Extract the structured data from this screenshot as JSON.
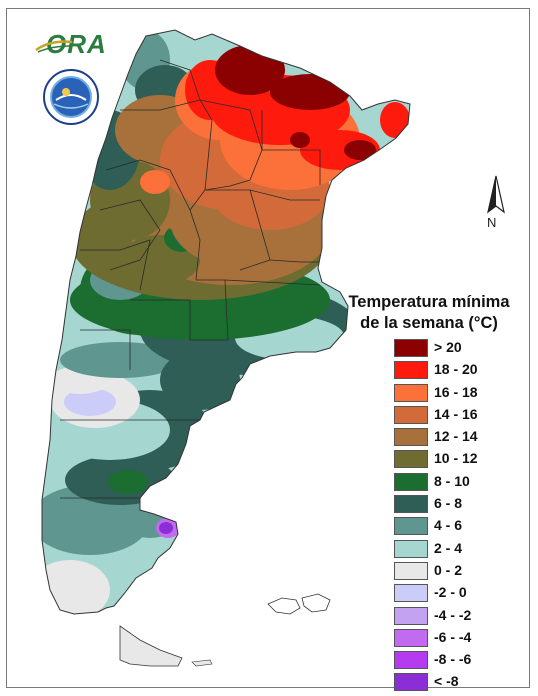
{
  "logo": {
    "text": "ORA"
  },
  "north_arrow": {
    "label": "N"
  },
  "legend": {
    "title_line1": "Temperatura mínima",
    "title_line2": "de la semana (°C)",
    "items": [
      {
        "label": "> 20",
        "color": "#8b0000"
      },
      {
        "label": "18 - 20",
        "color": "#ff1a0e"
      },
      {
        "label": "16 - 18",
        "color": "#fb7139"
      },
      {
        "label": "14 - 16",
        "color": "#d26a3a"
      },
      {
        "label": "12 - 14",
        "color": "#a8713b"
      },
      {
        "label": "10 - 12",
        "color": "#6e6c30"
      },
      {
        "label": "8 - 10",
        "color": "#1b6e30"
      },
      {
        "label": "6 - 8",
        "color": "#2e5e55"
      },
      {
        "label": "4 - 6",
        "color": "#5f9690"
      },
      {
        "label": "2 - 4",
        "color": "#a6d6d0"
      },
      {
        "label": "0 - 2",
        "color": "#e8e8e8"
      },
      {
        "label": "-2 - 0",
        "color": "#ccccf8"
      },
      {
        "label": "-4 - -2",
        "color": "#c4a2f2"
      },
      {
        "label": "-6 - -4",
        "color": "#c26af0"
      },
      {
        "label": "-8 - -6",
        "color": "#b43bf0"
      },
      {
        "label": "< -8",
        "color": "#8b2ed6"
      }
    ]
  }
}
